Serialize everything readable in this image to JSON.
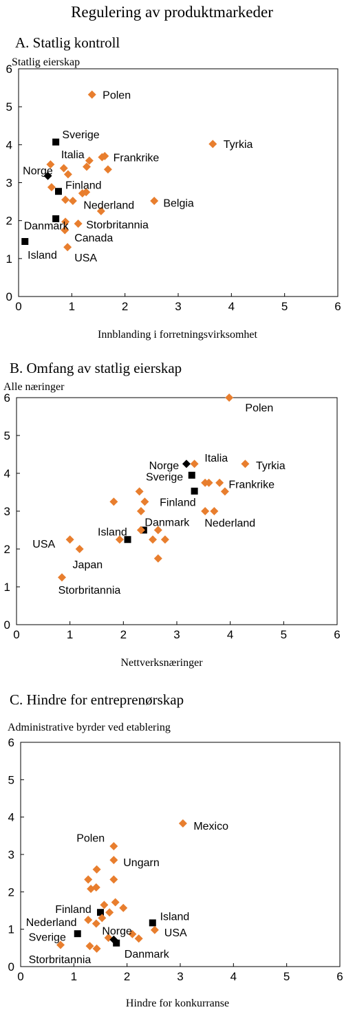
{
  "figure_title": "Regulering av produktmarkeder",
  "colors": {
    "country": "#E87E2E",
    "nordic": "#000000",
    "axis": "#000000"
  },
  "chart_data": [
    {
      "id": "A",
      "type": "scatter",
      "title": "A. Statlig kontroll",
      "xlabel": "Innblanding i forretningsvirksomhet",
      "ylabel": "Statlig eierskap",
      "xlim": [
        0,
        6
      ],
      "ylim": [
        0,
        6
      ],
      "ticks": [
        0,
        1,
        2,
        3,
        4,
        5,
        6
      ],
      "grid": false,
      "points": [
        {
          "x": 1.38,
          "y": 5.32,
          "marker": "diamond",
          "color": "orange"
        },
        {
          "x": 3.65,
          "y": 4.02,
          "marker": "diamond",
          "color": "orange"
        },
        {
          "x": 0.7,
          "y": 4.07,
          "marker": "square",
          "color": "black"
        },
        {
          "x": 0.6,
          "y": 3.48,
          "marker": "diamond",
          "color": "orange"
        },
        {
          "x": 0.85,
          "y": 3.38,
          "marker": "diamond",
          "color": "orange"
        },
        {
          "x": 0.93,
          "y": 3.22,
          "marker": "diamond",
          "color": "orange"
        },
        {
          "x": 0.55,
          "y": 3.18,
          "marker": "diamond",
          "color": "black"
        },
        {
          "x": 1.33,
          "y": 3.58,
          "marker": "diamond",
          "color": "orange"
        },
        {
          "x": 1.28,
          "y": 3.42,
          "marker": "diamond",
          "color": "orange"
        },
        {
          "x": 1.57,
          "y": 3.67,
          "marker": "diamond",
          "color": "orange"
        },
        {
          "x": 1.62,
          "y": 3.7,
          "marker": "diamond",
          "color": "orange"
        },
        {
          "x": 1.68,
          "y": 3.35,
          "marker": "diamond",
          "color": "orange"
        },
        {
          "x": 0.62,
          "y": 2.88,
          "marker": "diamond",
          "color": "orange"
        },
        {
          "x": 0.75,
          "y": 2.77,
          "marker": "square",
          "color": "black"
        },
        {
          "x": 1.2,
          "y": 2.72,
          "marker": "diamond",
          "color": "orange"
        },
        {
          "x": 1.27,
          "y": 2.75,
          "marker": "diamond",
          "color": "orange"
        },
        {
          "x": 0.88,
          "y": 2.55,
          "marker": "diamond",
          "color": "orange"
        },
        {
          "x": 1.02,
          "y": 2.52,
          "marker": "diamond",
          "color": "orange"
        },
        {
          "x": 1.55,
          "y": 2.25,
          "marker": "diamond",
          "color": "orange"
        },
        {
          "x": 2.55,
          "y": 2.52,
          "marker": "diamond",
          "color": "orange"
        },
        {
          "x": 0.7,
          "y": 2.05,
          "marker": "square",
          "color": "black"
        },
        {
          "x": 0.88,
          "y": 1.97,
          "marker": "diamond",
          "color": "orange"
        },
        {
          "x": 1.12,
          "y": 1.92,
          "marker": "diamond",
          "color": "orange"
        },
        {
          "x": 0.87,
          "y": 1.75,
          "marker": "diamond",
          "color": "orange"
        },
        {
          "x": 0.12,
          "y": 1.45,
          "marker": "square",
          "color": "black"
        },
        {
          "x": 0.92,
          "y": 1.3,
          "marker": "diamond",
          "color": "orange"
        }
      ],
      "labels": [
        {
          "text": "Polen",
          "x": 1.58,
          "y": 5.32
        },
        {
          "text": "Tyrkia",
          "x": 3.85,
          "y": 4.02
        },
        {
          "text": "Sverige",
          "x": 0.82,
          "y": 4.28
        },
        {
          "text": "Italia",
          "x": 0.8,
          "y": 3.75
        },
        {
          "text": "Frankrike",
          "x": 1.78,
          "y": 3.67
        },
        {
          "text": "Norge",
          "x": 0.08,
          "y": 3.33
        },
        {
          "text": "Finland",
          "x": 0.88,
          "y": 2.95
        },
        {
          "text": "Nederland",
          "x": 1.22,
          "y": 2.42
        },
        {
          "text": "Belgia",
          "x": 2.72,
          "y": 2.47
        },
        {
          "text": "Danmark",
          "x": 0.1,
          "y": 1.88
        },
        {
          "text": "Storbritannia",
          "x": 1.27,
          "y": 1.9
        },
        {
          "text": "Canada",
          "x": 1.05,
          "y": 1.56
        },
        {
          "text": "Island",
          "x": 0.17,
          "y": 1.11
        },
        {
          "text": "USA",
          "x": 1.05,
          "y": 1.03
        }
      ]
    },
    {
      "id": "B",
      "type": "scatter",
      "title": "B. Omfang av statlig eierskap",
      "xlabel": "Nettverksnæringer",
      "ylabel": "Alle næringer",
      "xlim": [
        0,
        6
      ],
      "ylim": [
        0,
        6
      ],
      "ticks": [
        0,
        1,
        2,
        3,
        4,
        5,
        6
      ],
      "grid": false,
      "points": [
        {
          "x": 3.98,
          "y": 6.0,
          "marker": "diamond",
          "color": "orange"
        },
        {
          "x": 3.33,
          "y": 4.25,
          "marker": "diamond",
          "color": "orange"
        },
        {
          "x": 3.18,
          "y": 4.25,
          "marker": "diamond",
          "color": "black"
        },
        {
          "x": 4.28,
          "y": 4.25,
          "marker": "diamond",
          "color": "orange"
        },
        {
          "x": 3.28,
          "y": 3.95,
          "marker": "square",
          "color": "black"
        },
        {
          "x": 3.53,
          "y": 3.75,
          "marker": "diamond",
          "color": "orange"
        },
        {
          "x": 3.6,
          "y": 3.75,
          "marker": "diamond",
          "color": "orange"
        },
        {
          "x": 3.8,
          "y": 3.75,
          "marker": "diamond",
          "color": "orange"
        },
        {
          "x": 3.33,
          "y": 3.53,
          "marker": "square",
          "color": "black"
        },
        {
          "x": 3.9,
          "y": 3.52,
          "marker": "diamond",
          "color": "orange"
        },
        {
          "x": 3.53,
          "y": 3.0,
          "marker": "diamond",
          "color": "orange"
        },
        {
          "x": 3.7,
          "y": 3.0,
          "marker": "diamond",
          "color": "orange"
        },
        {
          "x": 1.82,
          "y": 3.25,
          "marker": "diamond",
          "color": "orange"
        },
        {
          "x": 2.3,
          "y": 3.52,
          "marker": "diamond",
          "color": "orange"
        },
        {
          "x": 2.4,
          "y": 3.25,
          "marker": "diamond",
          "color": "orange"
        },
        {
          "x": 2.33,
          "y": 3.0,
          "marker": "diamond",
          "color": "orange"
        },
        {
          "x": 2.38,
          "y": 2.5,
          "marker": "square",
          "color": "black"
        },
        {
          "x": 2.33,
          "y": 2.5,
          "marker": "diamond",
          "color": "orange"
        },
        {
          "x": 2.65,
          "y": 2.5,
          "marker": "diamond",
          "color": "orange"
        },
        {
          "x": 2.55,
          "y": 2.25,
          "marker": "diamond",
          "color": "orange"
        },
        {
          "x": 2.78,
          "y": 2.25,
          "marker": "diamond",
          "color": "orange"
        },
        {
          "x": 2.65,
          "y": 1.75,
          "marker": "diamond",
          "color": "orange"
        },
        {
          "x": 1.93,
          "y": 2.25,
          "marker": "diamond",
          "color": "orange"
        },
        {
          "x": 2.08,
          "y": 2.25,
          "marker": "square",
          "color": "black"
        },
        {
          "x": 1.0,
          "y": 2.25,
          "marker": "diamond",
          "color": "orange"
        },
        {
          "x": 1.18,
          "y": 2.0,
          "marker": "diamond",
          "color": "orange"
        },
        {
          "x": 0.85,
          "y": 1.25,
          "marker": "diamond",
          "color": "orange"
        }
      ],
      "labels": [
        {
          "text": "Polen",
          "x": 4.28,
          "y": 5.75
        },
        {
          "text": "Norge",
          "x": 2.48,
          "y": 4.22
        },
        {
          "text": "Italia",
          "x": 3.52,
          "y": 4.42
        },
        {
          "text": "Tyrkia",
          "x": 4.48,
          "y": 4.22
        },
        {
          "text": "Sverige",
          "x": 2.42,
          "y": 3.92
        },
        {
          "text": "Frankrike",
          "x": 3.97,
          "y": 3.72
        },
        {
          "text": "Finland",
          "x": 2.68,
          "y": 3.25
        },
        {
          "text": "Nederland",
          "x": 3.52,
          "y": 2.7
        },
        {
          "text": "Danmark",
          "x": 2.4,
          "y": 2.72
        },
        {
          "text": "Island",
          "x": 1.52,
          "y": 2.46
        },
        {
          "text": "USA",
          "x": 0.3,
          "y": 2.15
        },
        {
          "text": "Japan",
          "x": 1.05,
          "y": 1.6
        },
        {
          "text": "Storbritannia",
          "x": 0.78,
          "y": 0.93
        }
      ]
    },
    {
      "id": "C",
      "type": "scatter",
      "title": "C. Hindre for entreprenørskap",
      "xlabel": "Hindre for konkurranse",
      "ylabel": "Administrative byrder ved etablering",
      "xlim": [
        0,
        6
      ],
      "ylim": [
        0,
        6
      ],
      "ticks": [
        0,
        1,
        2,
        3,
        4,
        5,
        6
      ],
      "grid": false,
      "points": [
        {
          "x": 3.05,
          "y": 3.83,
          "marker": "diamond",
          "color": "orange"
        },
        {
          "x": 1.75,
          "y": 3.22,
          "marker": "diamond",
          "color": "orange"
        },
        {
          "x": 1.75,
          "y": 2.85,
          "marker": "diamond",
          "color": "orange"
        },
        {
          "x": 1.43,
          "y": 2.6,
          "marker": "diamond",
          "color": "orange"
        },
        {
          "x": 1.27,
          "y": 2.33,
          "marker": "diamond",
          "color": "orange"
        },
        {
          "x": 1.75,
          "y": 2.33,
          "marker": "diamond",
          "color": "orange"
        },
        {
          "x": 1.32,
          "y": 2.08,
          "marker": "diamond",
          "color": "orange"
        },
        {
          "x": 1.42,
          "y": 2.12,
          "marker": "diamond",
          "color": "orange"
        },
        {
          "x": 1.57,
          "y": 1.65,
          "marker": "diamond",
          "color": "orange"
        },
        {
          "x": 1.78,
          "y": 1.72,
          "marker": "diamond",
          "color": "orange"
        },
        {
          "x": 1.93,
          "y": 1.57,
          "marker": "diamond",
          "color": "orange"
        },
        {
          "x": 1.5,
          "y": 1.45,
          "marker": "square",
          "color": "black"
        },
        {
          "x": 1.67,
          "y": 1.45,
          "marker": "diamond",
          "color": "orange"
        },
        {
          "x": 1.53,
          "y": 1.3,
          "marker": "diamond",
          "color": "orange"
        },
        {
          "x": 1.27,
          "y": 1.25,
          "marker": "diamond",
          "color": "orange"
        },
        {
          "x": 1.42,
          "y": 1.15,
          "marker": "diamond",
          "color": "orange"
        },
        {
          "x": 2.48,
          "y": 1.17,
          "marker": "square",
          "color": "black"
        },
        {
          "x": 2.52,
          "y": 0.98,
          "marker": "diamond",
          "color": "orange"
        },
        {
          "x": 2.1,
          "y": 0.87,
          "marker": "diamond",
          "color": "orange"
        },
        {
          "x": 2.22,
          "y": 0.75,
          "marker": "diamond",
          "color": "orange"
        },
        {
          "x": 1.65,
          "y": 0.77,
          "marker": "diamond",
          "color": "orange"
        },
        {
          "x": 1.75,
          "y": 0.72,
          "marker": "diamond",
          "color": "black"
        },
        {
          "x": 1.8,
          "y": 0.63,
          "marker": "square",
          "color": "black"
        },
        {
          "x": 1.07,
          "y": 0.88,
          "marker": "square",
          "color": "black"
        },
        {
          "x": 0.75,
          "y": 0.58,
          "marker": "diamond",
          "color": "orange"
        },
        {
          "x": 1.3,
          "y": 0.55,
          "marker": "diamond",
          "color": "orange"
        },
        {
          "x": 1.43,
          "y": 0.48,
          "marker": "diamond",
          "color": "orange"
        }
      ],
      "labels": [
        {
          "text": "Mexico",
          "x": 3.25,
          "y": 3.77
        },
        {
          "text": "Polen",
          "x": 1.05,
          "y": 3.45
        },
        {
          "text": "Ungarn",
          "x": 1.93,
          "y": 2.8
        },
        {
          "text": "Island",
          "x": 2.62,
          "y": 1.35
        },
        {
          "text": "Finland",
          "x": 0.65,
          "y": 1.55
        },
        {
          "text": "Nederland",
          "x": 0.1,
          "y": 1.2
        },
        {
          "text": "Norge",
          "x": 1.53,
          "y": 0.97
        },
        {
          "text": "USA",
          "x": 2.7,
          "y": 0.92
        },
        {
          "text": "Sverige",
          "x": 0.15,
          "y": 0.8
        },
        {
          "text": "Danmark",
          "x": 1.95,
          "y": 0.35
        },
        {
          "text": "Storbritannia",
          "x": 0.15,
          "y": 0.2
        }
      ]
    }
  ]
}
